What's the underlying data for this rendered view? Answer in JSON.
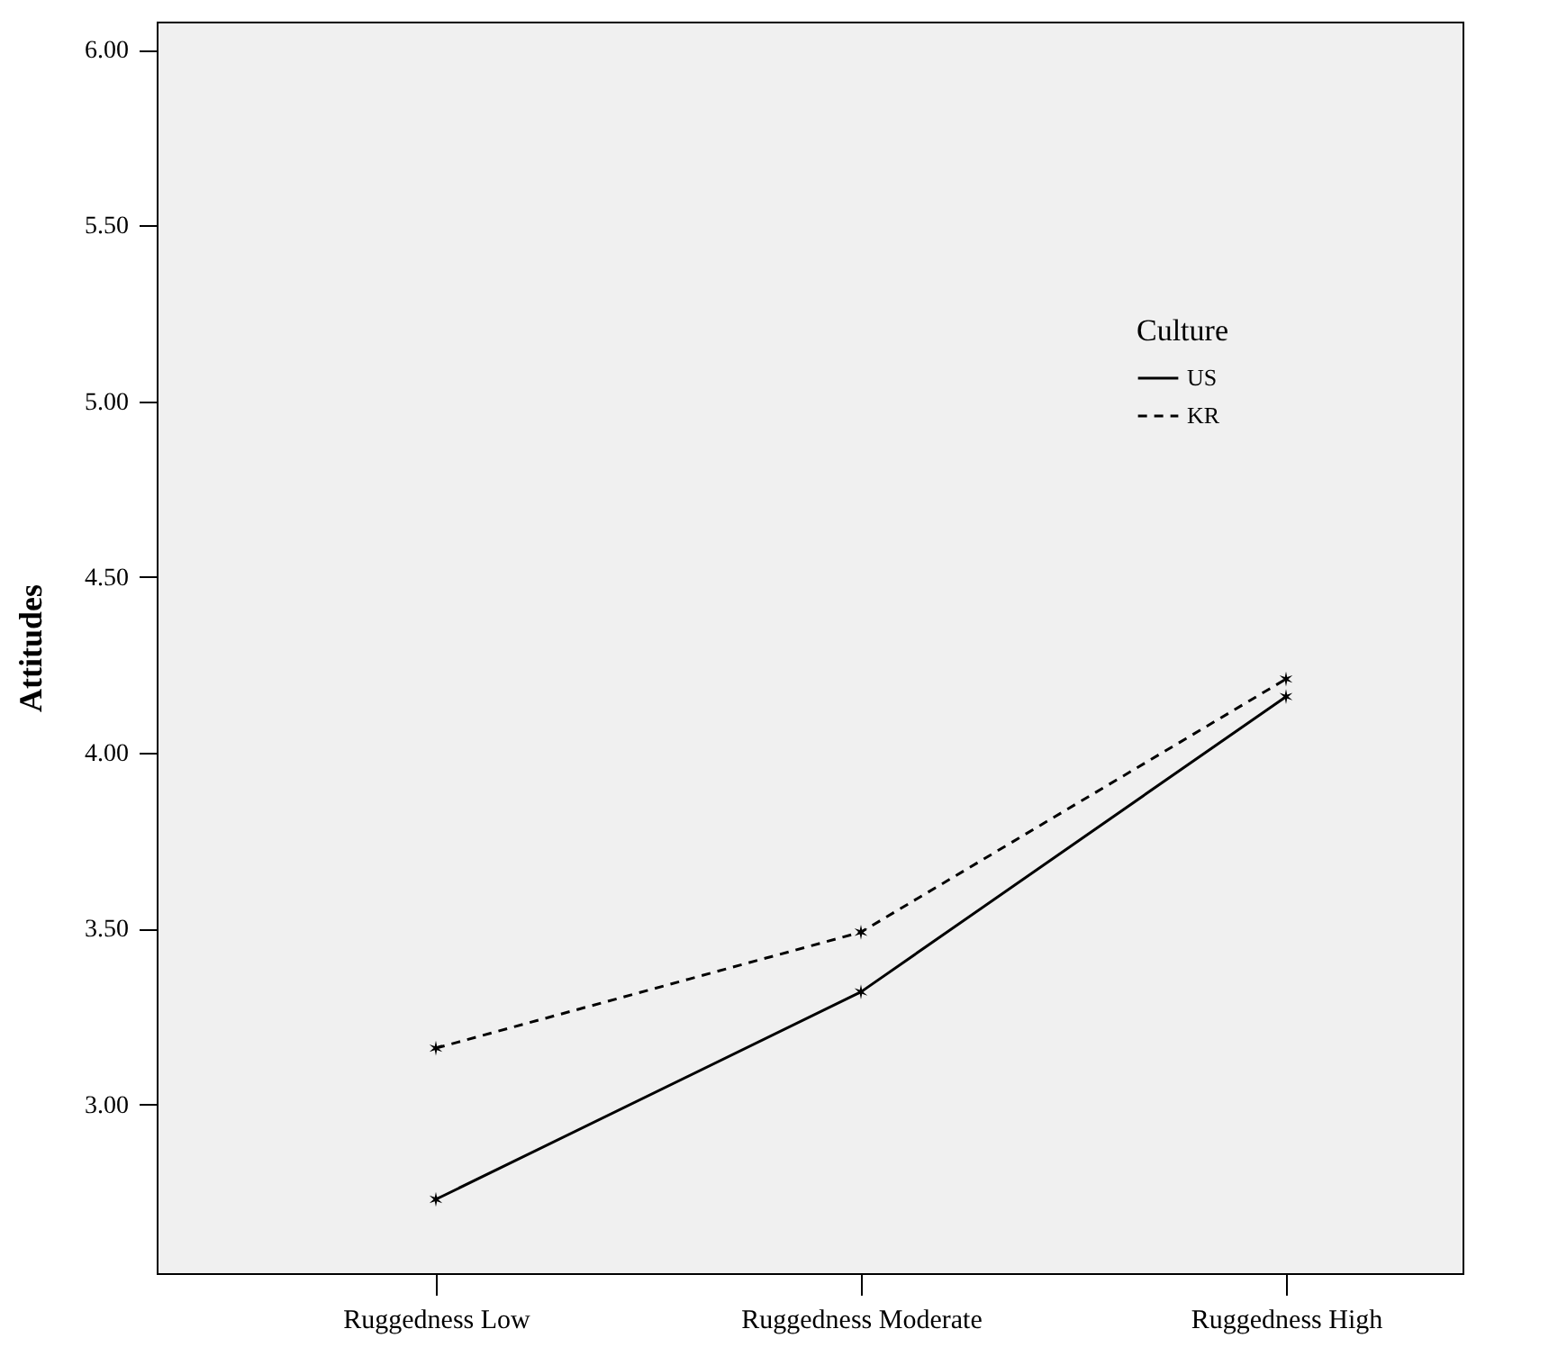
{
  "chart_data": {
    "type": "line",
    "ylabel": "Attitudes",
    "legend_title": "Culture",
    "legend": "top right",
    "marker": "cross",
    "grid": false,
    "categories": [
      "Ruggedness Low",
      "Ruggedness Moderate",
      "Ruggedness High"
    ],
    "ylim": [
      2.52,
      6.08
    ],
    "yticks": [
      {
        "value": 3,
        "label": "3.00"
      },
      {
        "value": 3.5,
        "label": "3.50"
      },
      {
        "value": 4,
        "label": "4.00"
      },
      {
        "value": 4.5,
        "label": "4.50"
      },
      {
        "value": 5,
        "label": "5.00"
      },
      {
        "value": 5.5,
        "label": "5.50"
      },
      {
        "value": 6,
        "label": "6.00"
      }
    ],
    "series": [
      {
        "name": "US",
        "color": "#000000",
        "line_style": "solid",
        "values": [
          2.73,
          3.32,
          4.16
        ]
      },
      {
        "name": "KR",
        "color": "#000000",
        "line_style": "dashed",
        "values": [
          3.16,
          3.49,
          4.21
        ]
      }
    ]
  }
}
